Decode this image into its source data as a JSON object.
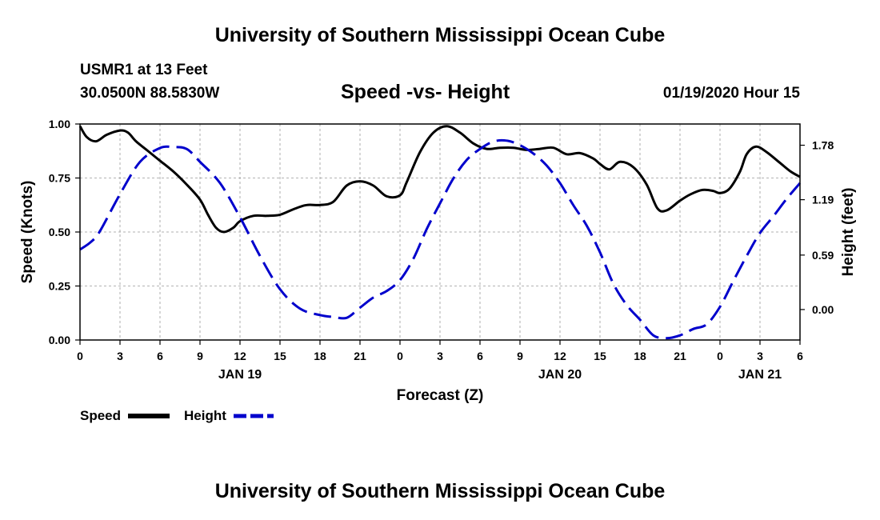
{
  "header": {
    "title": "University of Southern Mississippi Ocean Cube",
    "station": "USMR1 at 13 Feet",
    "coords": "30.0500N 88.5830W",
    "subtitle": "Speed -vs- Height",
    "datestamp": "01/19/2020 Hour 15"
  },
  "footer": {
    "title": "University of Southern Mississippi Ocean Cube"
  },
  "colors": {
    "speed": "#000000",
    "height": "#0000cc",
    "grid": "#999999"
  },
  "chart_data": {
    "type": "line",
    "xlabel": "Forecast (Z)",
    "x_range": [
      0,
      54
    ],
    "x_tick_hours": [
      0,
      3,
      6,
      9,
      12,
      15,
      18,
      21,
      24,
      27,
      30,
      33,
      36,
      39,
      42,
      45,
      48,
      51,
      54
    ],
    "x_tick_labels": [
      "0",
      "3",
      "6",
      "9",
      "12",
      "15",
      "18",
      "21",
      "0",
      "3",
      "6",
      "9",
      "12",
      "15",
      "18",
      "21",
      "0",
      "3",
      "6"
    ],
    "date_labels": [
      {
        "label": "JAN 19",
        "hour": 12
      },
      {
        "label": "JAN 20",
        "hour": 36
      },
      {
        "label": "JAN 21",
        "hour": 51
      }
    ],
    "left_axis": {
      "label": "Speed (Knots)",
      "range": [
        0,
        1
      ],
      "ticks": [
        0,
        0.25,
        0.5,
        0.75,
        1
      ],
      "tick_labels": [
        "0.00",
        "0.25",
        "0.50",
        "0.75",
        "1.00"
      ]
    },
    "right_axis": {
      "label": "Height (feet)",
      "range": [
        -0.33,
        2.01
      ],
      "ticks": [
        0,
        0.59,
        1.19,
        1.78
      ],
      "tick_labels": [
        "0.00",
        "0.59",
        "1.19",
        "1.78"
      ]
    },
    "series": [
      {
        "name": "Speed",
        "axis": "left",
        "style": "solid",
        "x": [
          0,
          0.5,
          1.2,
          2,
          3,
          3.6,
          4.2,
          5,
          6,
          7,
          8,
          9,
          9.6,
          10.2,
          10.8,
          11.5,
          12,
          13,
          14,
          15,
          16,
          17,
          18,
          19,
          20,
          21,
          22,
          23,
          24,
          24.5,
          25.5,
          26.5,
          27.5,
          28.5,
          29.5,
          30.5,
          31.5,
          32.5,
          33.5,
          34.5,
          35.5,
          36.5,
          37.5,
          38.5,
          39,
          39.7,
          40.5,
          41.5,
          42.5,
          43.3,
          44,
          45,
          45.8,
          46.7,
          47.5,
          48,
          48.7,
          49.5,
          50,
          50.7,
          51.5,
          52.5,
          53.3,
          54
        ],
        "values": [
          0.99,
          0.94,
          0.92,
          0.95,
          0.97,
          0.96,
          0.92,
          0.88,
          0.83,
          0.78,
          0.72,
          0.65,
          0.58,
          0.52,
          0.5,
          0.52,
          0.55,
          0.575,
          0.575,
          0.58,
          0.605,
          0.625,
          0.625,
          0.64,
          0.715,
          0.735,
          0.715,
          0.665,
          0.67,
          0.73,
          0.87,
          0.96,
          0.99,
          0.96,
          0.91,
          0.885,
          0.89,
          0.89,
          0.88,
          0.885,
          0.89,
          0.86,
          0.865,
          0.84,
          0.815,
          0.79,
          0.825,
          0.8,
          0.72,
          0.61,
          0.6,
          0.645,
          0.675,
          0.695,
          0.69,
          0.68,
          0.7,
          0.78,
          0.86,
          0.895,
          0.87,
          0.82,
          0.78,
          0.755
        ]
      },
      {
        "name": "Height",
        "axis": "right",
        "style": "dashed",
        "x": [
          0,
          0.8,
          1.5,
          3,
          4.5,
          6,
          7,
          8,
          9,
          10.5,
          12,
          13.5,
          15,
          16.5,
          18,
          19,
          20,
          21,
          22,
          23,
          24,
          25,
          26,
          27,
          28,
          29,
          30,
          31,
          32,
          33,
          34,
          35,
          36,
          37,
          38,
          39,
          40,
          41,
          42,
          43,
          44,
          45,
          46,
          47,
          48,
          49,
          50,
          51,
          52,
          53,
          54
        ],
        "values": [
          0.65,
          0.73,
          0.85,
          1.25,
          1.6,
          1.75,
          1.76,
          1.74,
          1.6,
          1.37,
          1.0,
          0.58,
          0.22,
          0.01,
          -0.06,
          -0.08,
          -0.09,
          0.02,
          0.13,
          0.2,
          0.32,
          0.55,
          0.87,
          1.15,
          1.42,
          1.62,
          1.74,
          1.82,
          1.83,
          1.78,
          1.69,
          1.56,
          1.37,
          1.13,
          0.91,
          0.62,
          0.28,
          0.05,
          -0.11,
          -0.28,
          -0.31,
          -0.28,
          -0.21,
          -0.16,
          0.03,
          0.31,
          0.58,
          0.83,
          1.01,
          1.2,
          1.37
        ]
      }
    ],
    "legend": {
      "placement": "bottom-left",
      "entries": [
        "Speed",
        "Height"
      ]
    }
  }
}
